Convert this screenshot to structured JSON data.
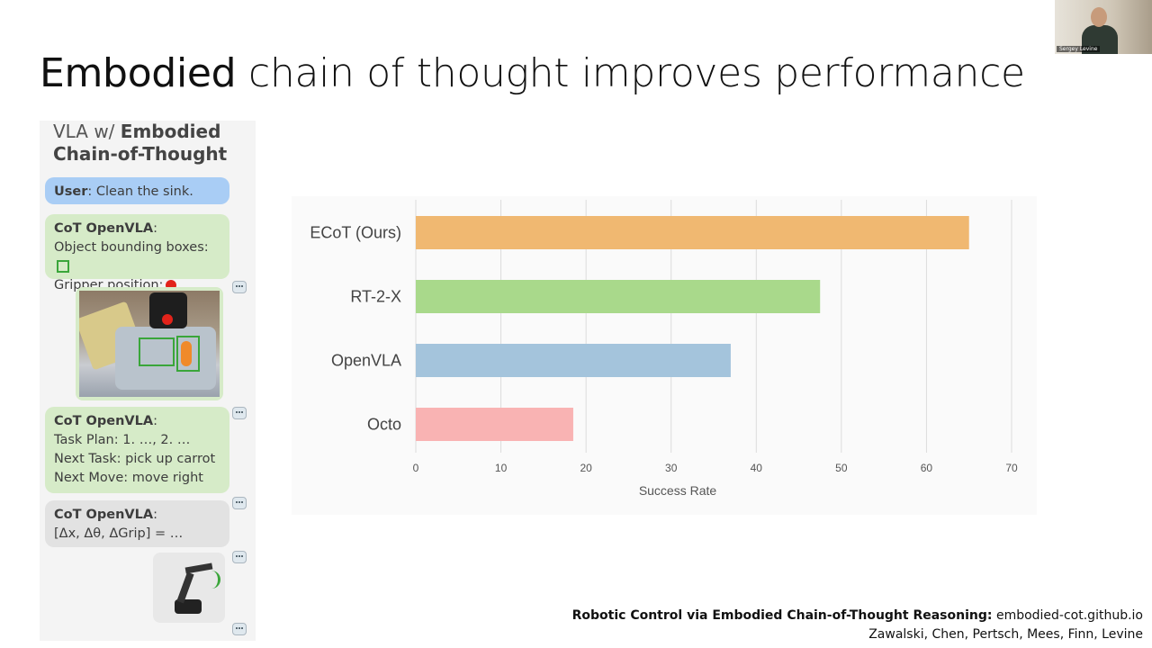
{
  "slide": {
    "title_emphasis": "Embodied",
    "title_rest": " chain of thought improves performance"
  },
  "webcam": {
    "name": "Sergey Levine"
  },
  "left_panel": {
    "heading_line1_prefix": "VLA w/ ",
    "heading_line1_bold": "Embodied",
    "heading_line2": "Chain-of-Thought",
    "user_label": "User",
    "user_text": ": Clean the sink.",
    "cot1": {
      "label": "CoT OpenVLA",
      "colon": ":",
      "line1": "Object bounding boxes:",
      "line2": "Gripper position:"
    },
    "cot2": {
      "label": "CoT OpenVLA",
      "colon": ":",
      "line1": "Task Plan: 1. …, 2. …",
      "line2": "Next Task: pick up carrot",
      "line3": "Next Move: move right"
    },
    "cot3": {
      "label": "CoT OpenVLA",
      "colon": ":",
      "line1": "[Δx, Δθ, ΔGrip] = …"
    }
  },
  "chart_data": {
    "type": "bar",
    "orientation": "horizontal",
    "categories": [
      "ECoT (Ours)",
      "RT-2-X",
      "OpenVLA",
      "Octo"
    ],
    "values": [
      65,
      47.5,
      37,
      18.5
    ],
    "colors": [
      "#f0b871",
      "#a9d98b",
      "#a4c4dc",
      "#f9b3b3"
    ],
    "xlabel": "Success Rate",
    "xlim": [
      0,
      70
    ],
    "xticks": [
      0,
      10,
      20,
      30,
      40,
      50,
      60,
      70
    ],
    "grid": "vertical"
  },
  "citation": {
    "title_bold": "Robotic Control via Embodied Chain-of-Thought Reasoning:",
    "url": " embodied-cot.github.io",
    "authors": "Zawalski, Chen, Pertsch, Mees, Finn, Levine"
  }
}
